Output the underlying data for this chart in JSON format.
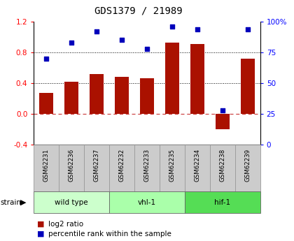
{
  "title": "GDS1379 / 21989",
  "samples": [
    "GSM62231",
    "GSM62236",
    "GSM62237",
    "GSM62232",
    "GSM62233",
    "GSM62235",
    "GSM62234",
    "GSM62238",
    "GSM62239"
  ],
  "log2_ratio": [
    0.27,
    0.42,
    0.52,
    0.48,
    0.46,
    0.93,
    0.91,
    -0.2,
    0.72
  ],
  "percentile_rank": [
    70,
    83,
    92,
    85,
    78,
    96,
    94,
    28,
    94
  ],
  "ylim_left": [
    -0.4,
    1.2
  ],
  "ylim_right": [
    0,
    100
  ],
  "left_ticks": [
    -0.4,
    0.0,
    0.4,
    0.8,
    1.2
  ],
  "right_ticks": [
    0,
    25,
    50,
    75,
    100
  ],
  "hline_dotted": [
    0.4,
    0.8
  ],
  "hline_zero": 0.0,
  "groups": [
    {
      "label": "wild type",
      "start": 0,
      "end": 3,
      "color": "#ccffcc"
    },
    {
      "label": "vhl-1",
      "start": 3,
      "end": 6,
      "color": "#aaffaa"
    },
    {
      "label": "hif-1",
      "start": 6,
      "end": 9,
      "color": "#55dd55"
    }
  ],
  "bar_color": "#aa1100",
  "scatter_color": "#0000bb",
  "zero_line_color": "#cc4444",
  "sample_box_color": "#cccccc",
  "sample_box_edge": "#999999"
}
